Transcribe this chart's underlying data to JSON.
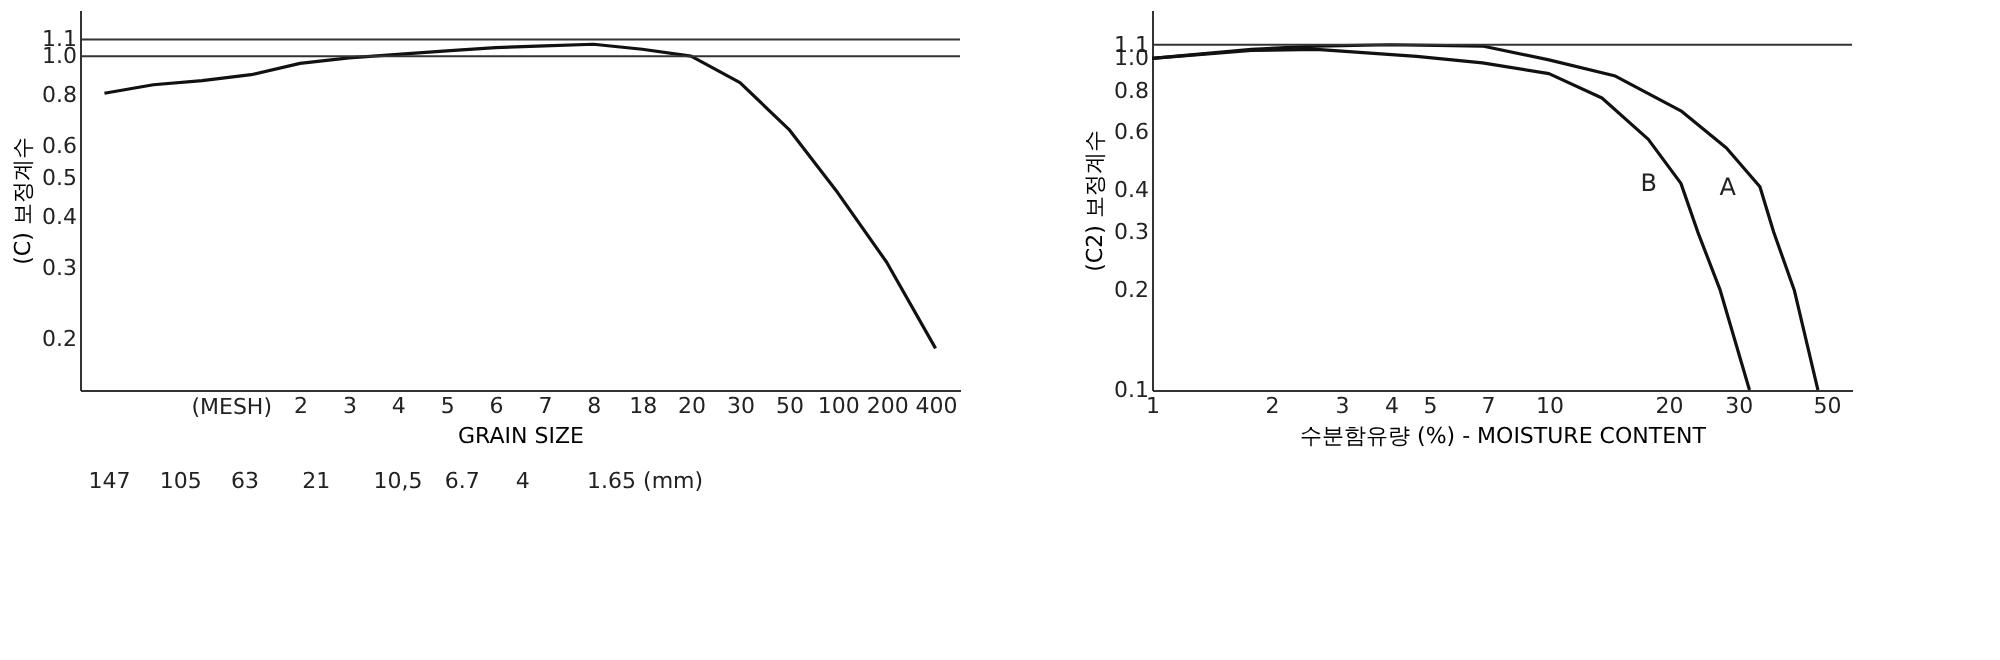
{
  "chart_data": [
    {
      "type": "line",
      "ylabel": "(C) 보정계수",
      "xlabel": "GRAIN SIZE",
      "annotations": [
        "(MESH)",
        "147",
        "105",
        "63",
        "21",
        "10,5",
        "6.7",
        "4",
        "1.65 (mm)"
      ],
      "log": "y",
      "grid": false,
      "categories": [
        null,
        null,
        null,
        null,
        "2",
        "3",
        "4",
        "5",
        "6",
        "7",
        "8",
        "18",
        "20",
        "30",
        "50",
        "100",
        "200",
        "400"
      ],
      "ylim": [
        0.15,
        1.3
      ],
      "yticks": [
        1.1,
        {
          "value": 1,
          "label": "1.0"
        },
        0.8,
        0.6,
        0.5,
        0.4,
        0.3,
        0.2
      ],
      "ref_lines": [
        {
          "axis": "y",
          "value": 1.1,
          "color": "#333333"
        },
        {
          "axis": "y",
          "value": 1,
          "color": "#333333"
        }
      ],
      "series": [
        {
          "color": "#111111",
          "values": [
            0.81,
            0.85,
            0.87,
            0.9,
            0.96,
            0.99,
            1.01,
            1.03,
            1.05,
            1.06,
            1.07,
            1.04,
            1.0,
            0.86,
            0.66,
            0.46,
            0.31,
            0.19
          ]
        }
      ]
    },
    {
      "type": "line",
      "ylabel": "(C2) 보정계수",
      "xlabel": "수분함유량 (%) - MOISTURE CONTENT",
      "log": "xy",
      "grid": false,
      "xlim": [
        1,
        58
      ],
      "xticks": [
        1,
        2,
        3,
        4,
        5,
        7,
        10,
        20,
        30,
        50
      ],
      "ylim": [
        0.1,
        1.4
      ],
      "yticks": [
        1.1,
        {
          "value": 1,
          "label": "1.0"
        },
        0.8,
        0.6,
        0.4,
        0.3,
        0.2,
        0.1
      ],
      "ref_lines": [
        {
          "axis": "y",
          "value": 1.1,
          "color": "#333333"
        }
      ],
      "series": [
        {
          "name": "A",
          "color": "#111111",
          "x": [
            1,
            1.78,
            2.6,
            3.98,
            6.8,
            10,
            14.7,
            21.5,
            28,
            34,
            36.8,
            41.5,
            47.6
          ],
          "values": [
            1.0,
            1.065,
            1.09,
            1.1,
            1.09,
            0.99,
            0.885,
            0.695,
            0.537,
            0.41,
            0.3,
            0.2,
            0.1
          ]
        },
        {
          "name": "B",
          "color": "#111111",
          "x": [
            1,
            1.78,
            2.6,
            4.64,
            6.8,
            10,
            13.6,
            17.8,
            21.5,
            23.7,
            27,
            32
          ],
          "values": [
            1.0,
            1.057,
            1.065,
            1.015,
            0.97,
            0.9,
            0.76,
            0.57,
            0.42,
            0.3,
            0.2,
            0.1
          ]
        }
      ]
    }
  ]
}
